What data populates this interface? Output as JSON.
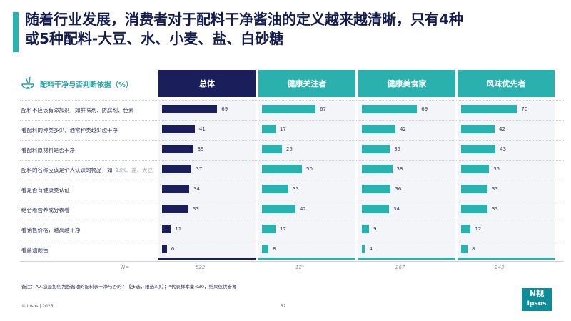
{
  "title": {
    "line1": "随着行业发展，消费者对于配料干净酱油的定义越来越清晰，只有4种",
    "line2": "或5种配料-大豆、水、小麦、盐、白砂糖"
  },
  "colors": {
    "navy": "#1a1f5c",
    "teal": "#27b3b0",
    "teal_header": "#2ab0ad"
  },
  "chart_data": {
    "type": "bar",
    "title": "配料干净与否判断依据（%）",
    "categories": [
      "配料不应该有添加剂，如鲜味剂、防腐剂、色素",
      "看配料的种类多少，通常种类越少越干净",
      "看配料原材料是否干净",
      "配料的名称应该是个人认识的物品，如",
      "看是否有健康类认证",
      "结合着营养成分表看",
      "看销售价格，越高越干净",
      "看酱油颜色"
    ],
    "category_suffix_4": "如水、盐、大豆",
    "series": [
      {
        "name": "总体",
        "values": [
          69,
          41,
          39,
          37,
          34,
          33,
          11,
          6
        ],
        "n": "522"
      },
      {
        "name": "健康关注者",
        "values": [
          67,
          17,
          25,
          50,
          33,
          42,
          17,
          8
        ],
        "n": "12*"
      },
      {
        "name": "健康美食家",
        "values": [
          69,
          42,
          35,
          38,
          36,
          34,
          9,
          4
        ],
        "n": "267"
      },
      {
        "name": "风味优先者",
        "values": [
          70,
          42,
          43,
          35,
          33,
          33,
          12,
          8
        ],
        "n": "243"
      }
    ],
    "n_label": "N="
  },
  "note": "备注：A7.您是如何判断酱油的配料表干净与否的？【多选，限选3项】；*代表样本量<30，结果仅供参考",
  "footer": {
    "copyright": "© Ipsos | 2025",
    "page": "32"
  },
  "logo": {
    "top": "N视",
    "bottom": "Ipsos"
  }
}
